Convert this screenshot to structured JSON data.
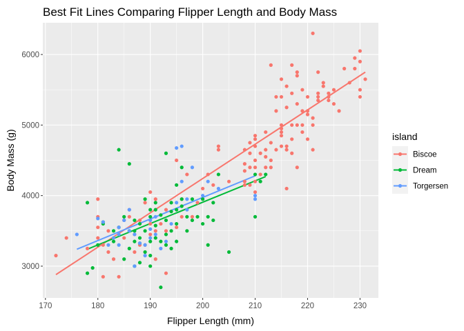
{
  "chart_data": {
    "type": "scatter",
    "title": "Best Fit Lines Comparing Flipper Length and Body Mass",
    "xlabel": "Flipper Length (mm)",
    "ylabel": "Body Mass (g)",
    "xlim": [
      169.5,
      233.5
    ],
    "ylim": [
      2550,
      6450
    ],
    "x_ticks": [
      170,
      180,
      190,
      200,
      210,
      220,
      230
    ],
    "y_ticks": [
      3000,
      4000,
      5000,
      6000
    ],
    "grid": true,
    "legend": {
      "title": "island",
      "position": "right"
    },
    "series": [
      {
        "name": "Biscoe",
        "color": "#F8766D",
        "fit": {
          "x": [
            172,
            231
          ],
          "y": [
            2880,
            5750
          ]
        },
        "points": [
          [
            172,
            3150
          ],
          [
            174,
            3400
          ],
          [
            178,
            3250
          ],
          [
            180,
            3950
          ],
          [
            180,
            3550
          ],
          [
            180,
            3700
          ],
          [
            180,
            3400
          ],
          [
            181,
            2850
          ],
          [
            181,
            3300
          ],
          [
            182,
            3200
          ],
          [
            182,
            3500
          ],
          [
            183,
            3100
          ],
          [
            184,
            2850
          ],
          [
            184,
            3550
          ],
          [
            185,
            3400
          ],
          [
            185,
            3650
          ],
          [
            186,
            3800
          ],
          [
            186,
            3700
          ],
          [
            187,
            3200
          ],
          [
            187,
            3450
          ],
          [
            188,
            3650
          ],
          [
            188,
            3300
          ],
          [
            189,
            3300
          ],
          [
            189,
            3900
          ],
          [
            190,
            3450
          ],
          [
            190,
            4050
          ],
          [
            190,
            3600
          ],
          [
            191,
            3100
          ],
          [
            191,
            3950
          ],
          [
            191,
            3500
          ],
          [
            192,
            3600
          ],
          [
            193,
            2900
          ],
          [
            193,
            3500
          ],
          [
            193,
            3800
          ],
          [
            195,
            3550
          ],
          [
            195,
            4500
          ],
          [
            196,
            3950
          ],
          [
            196,
            3700
          ],
          [
            197,
            4300
          ],
          [
            198,
            3700
          ],
          [
            199,
            3900
          ],
          [
            200,
            4100
          ],
          [
            201,
            4300
          ],
          [
            202,
            4150
          ],
          [
            203,
            4700
          ],
          [
            203,
            4650
          ],
          [
            205,
            4200
          ],
          [
            208,
            4150
          ],
          [
            208,
            4650
          ],
          [
            208,
            4350
          ],
          [
            208,
            4450
          ],
          [
            208,
            4200
          ],
          [
            209,
            4600
          ],
          [
            209,
            4400
          ],
          [
            209,
            4750
          ],
          [
            209,
            4150
          ],
          [
            210,
            4850
          ],
          [
            210,
            4500
          ],
          [
            210,
            4200
          ],
          [
            210,
            4400
          ],
          [
            210,
            4800
          ],
          [
            210,
            4700
          ],
          [
            210,
            4050
          ],
          [
            211,
            4300
          ],
          [
            211,
            4600
          ],
          [
            212,
            4650
          ],
          [
            212,
            4900
          ],
          [
            212,
            4400
          ],
          [
            212,
            4550
          ],
          [
            213,
            5850
          ],
          [
            213,
            4500
          ],
          [
            213,
            4400
          ],
          [
            213,
            4750
          ],
          [
            214,
            4650
          ],
          [
            214,
            5400
          ],
          [
            214,
            5200
          ],
          [
            215,
            4950
          ],
          [
            215,
            4700
          ],
          [
            215,
            5650
          ],
          [
            215,
            4850
          ],
          [
            215,
            5000
          ],
          [
            215,
            5400
          ],
          [
            215,
            4900
          ],
          [
            216,
            4650
          ],
          [
            216,
            5250
          ],
          [
            216,
            4100
          ],
          [
            216,
            5550
          ],
          [
            216,
            4700
          ],
          [
            217,
            5850
          ],
          [
            217,
            4600
          ],
          [
            217,
            4800
          ],
          [
            217,
            5000
          ],
          [
            217,
            5450
          ],
          [
            218,
            5750
          ],
          [
            218,
            4400
          ],
          [
            218,
            5000
          ],
          [
            218,
            5300
          ],
          [
            218,
            5700
          ],
          [
            219,
            4900
          ],
          [
            219,
            5200
          ],
          [
            219,
            5000
          ],
          [
            219,
            5500
          ],
          [
            220,
            5150
          ],
          [
            220,
            4800
          ],
          [
            220,
            5400
          ],
          [
            220,
            5200
          ],
          [
            221,
            6300
          ],
          [
            221,
            4650
          ],
          [
            221,
            5000
          ],
          [
            221,
            5100
          ],
          [
            222,
            5400
          ],
          [
            222,
            5350
          ],
          [
            222,
            5450
          ],
          [
            222,
            5750
          ],
          [
            223,
            5600
          ],
          [
            223,
            5550
          ],
          [
            224,
            5400
          ],
          [
            224,
            5350
          ],
          [
            224,
            5450
          ],
          [
            225,
            5300
          ],
          [
            225,
            5500
          ],
          [
            226,
            5200
          ],
          [
            227,
            5800
          ],
          [
            228,
            5600
          ],
          [
            229,
            5800
          ],
          [
            229,
            5950
          ],
          [
            230,
            6050
          ],
          [
            230,
            5900
          ],
          [
            230,
            5500
          ],
          [
            230,
            5400
          ],
          [
            231,
            5650
          ]
        ]
      },
      {
        "name": "Dream",
        "color": "#00BA38",
        "fit": {
          "x": [
            178,
            212
          ],
          "y": [
            3240,
            4270
          ]
        },
        "points": [
          [
            178,
            3900
          ],
          [
            178,
            2900
          ],
          [
            179,
            2975
          ],
          [
            180,
            3300
          ],
          [
            181,
            3600
          ],
          [
            181,
            3625
          ],
          [
            183,
            3500
          ],
          [
            183,
            3350
          ],
          [
            184,
            4650
          ],
          [
            184,
            3550
          ],
          [
            185,
            3700
          ],
          [
            185,
            3100
          ],
          [
            186,
            4450
          ],
          [
            186,
            3250
          ],
          [
            187,
            3500
          ],
          [
            187,
            3350
          ],
          [
            187,
            3000
          ],
          [
            188,
            3050
          ],
          [
            188,
            3600
          ],
          [
            188,
            3400
          ],
          [
            189,
            3500
          ],
          [
            189,
            3950
          ],
          [
            190,
            3350
          ],
          [
            190,
            3800
          ],
          [
            190,
            3000
          ],
          [
            190,
            3700
          ],
          [
            191,
            3400
          ],
          [
            191,
            3575
          ],
          [
            191,
            3900
          ],
          [
            192,
            2700
          ],
          [
            192,
            3725
          ],
          [
            193,
            4600
          ],
          [
            193,
            3300
          ],
          [
            193,
            3450
          ],
          [
            194,
            3250
          ],
          [
            194,
            3500
          ],
          [
            195,
            3350
          ],
          [
            195,
            3800
          ],
          [
            196,
            3950
          ],
          [
            196,
            4400
          ],
          [
            197,
            3500
          ],
          [
            197,
            3700
          ],
          [
            198,
            3950
          ],
          [
            198,
            3650
          ],
          [
            200,
            3950
          ],
          [
            201,
            3700
          ],
          [
            202,
            3900
          ],
          [
            203,
            4300
          ],
          [
            205,
            3200
          ],
          [
            210,
            4300
          ],
          [
            210,
            3700
          ],
          [
            211,
            4200
          ],
          [
            212,
            4300
          ],
          [
            186,
            3500
          ],
          [
            187,
            3650
          ],
          [
            189,
            3200
          ],
          [
            190,
            3150
          ],
          [
            192,
            3350
          ],
          [
            193,
            3650
          ],
          [
            194,
            3775
          ],
          [
            195,
            3600
          ],
          [
            196,
            3850
          ],
          [
            199,
            3700
          ],
          [
            200,
            3600
          ],
          [
            201,
            3300
          ],
          [
            202,
            3650
          ],
          [
            195,
            4150
          ],
          [
            194,
            3900
          ],
          [
            191,
            3800
          ],
          [
            188,
            3325
          ]
        ]
      },
      {
        "name": "Torgersen",
        "color": "#619CFF",
        "fit": {
          "x": [
            176,
            210
          ],
          "y": [
            3240,
            4280
          ]
        },
        "points": [
          [
            176,
            3450
          ],
          [
            180,
            3675
          ],
          [
            181,
            3625
          ],
          [
            182,
            3300
          ],
          [
            183,
            3400
          ],
          [
            184,
            3550
          ],
          [
            185,
            3650
          ],
          [
            186,
            3500
          ],
          [
            187,
            3450
          ],
          [
            188,
            3325
          ],
          [
            189,
            3150
          ],
          [
            189,
            3300
          ],
          [
            190,
            3525
          ],
          [
            190,
            3400
          ],
          [
            191,
            3450
          ],
          [
            191,
            3700
          ],
          [
            192,
            3250
          ],
          [
            193,
            3350
          ],
          [
            194,
            3600
          ],
          [
            195,
            4675
          ],
          [
            195,
            3900
          ],
          [
            196,
            4700
          ],
          [
            196,
            4200
          ],
          [
            197,
            3950
          ],
          [
            198,
            4400
          ],
          [
            200,
            4000
          ],
          [
            201,
            4200
          ],
          [
            203,
            4100
          ],
          [
            210,
            3950
          ],
          [
            210,
            4000
          ],
          [
            186,
            3800
          ],
          [
            184,
            3450
          ],
          [
            187,
            3000
          ],
          [
            190,
            3650
          ],
          [
            197,
            3800
          ],
          [
            184,
            3300
          ]
        ]
      }
    ]
  }
}
